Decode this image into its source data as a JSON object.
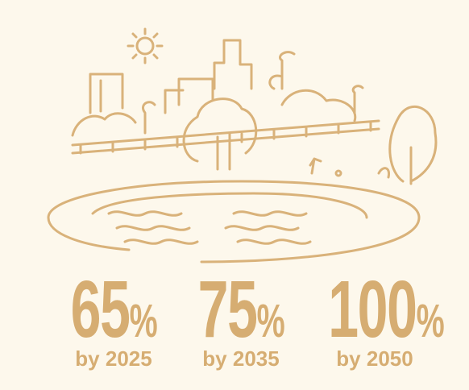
{
  "stats": [
    {
      "value": "65",
      "unit": "%",
      "label": "by 2025"
    },
    {
      "value": "75",
      "unit": "%",
      "label": "by 2035"
    },
    {
      "value": "100",
      "unit": "%",
      "label": "by 2050"
    }
  ]
}
